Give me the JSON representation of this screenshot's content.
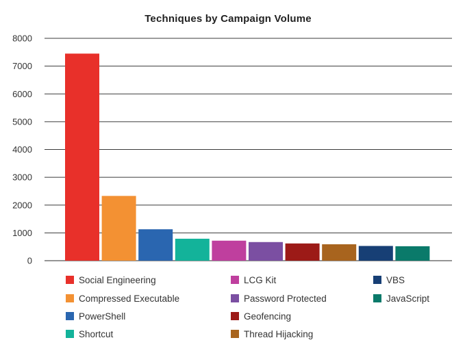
{
  "chart_data": {
    "type": "bar",
    "title": "Techniques by Campaign Volume",
    "xlabel": "",
    "ylabel": "",
    "ylim": [
      0,
      8000
    ],
    "yticks": [
      0,
      1000,
      2000,
      3000,
      4000,
      5000,
      6000,
      7000,
      8000
    ],
    "grid": true,
    "legend_position": "bottom",
    "categories": [
      "Social Engineering",
      "Compressed Executable",
      "PowerShell",
      "Shortcut",
      "LCG Kit",
      "Password Protected",
      "Geofencing",
      "Thread Hijacking",
      "VBS",
      "JavaScript"
    ],
    "values": [
      7450,
      2330,
      1130,
      790,
      720,
      670,
      620,
      590,
      530,
      520
    ],
    "colors": [
      "#e8302a",
      "#f39133",
      "#2a66b0",
      "#13b39a",
      "#bf3f9e",
      "#7b4fa2",
      "#9c1a17",
      "#a8641e",
      "#173f75",
      "#0a7a6a"
    ],
    "legend_order": [
      "Social Engineering",
      "LCG Kit",
      "VBS",
      "Compressed Executable",
      "Password Protected",
      "JavaScript",
      "PowerShell",
      "Geofencing",
      "Shortcut",
      "Thread Hijacking"
    ]
  }
}
